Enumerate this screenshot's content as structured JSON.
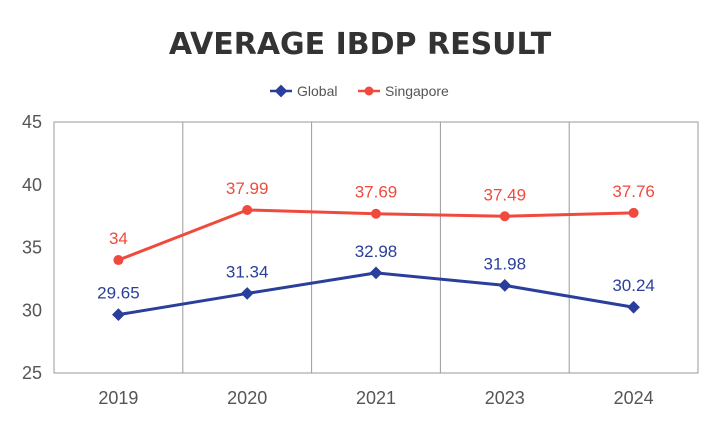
{
  "chart_data": {
    "type": "line",
    "title": "AVERAGE IBDP RESULT",
    "categories": [
      "2019",
      "2020",
      "2021",
      "2023",
      "2024"
    ],
    "ylim": [
      25,
      45
    ],
    "yticks": [
      25,
      30,
      35,
      40,
      45
    ],
    "grid": "vertical",
    "legend_position": "top",
    "series": [
      {
        "name": "Global",
        "color": "#2a3e9c",
        "values": [
          29.65,
          31.34,
          32.98,
          31.98,
          30.24
        ]
      },
      {
        "name": "Singapore",
        "color": "#f04a3e",
        "values": [
          34,
          37.99,
          37.69,
          37.49,
          37.76
        ]
      }
    ]
  }
}
